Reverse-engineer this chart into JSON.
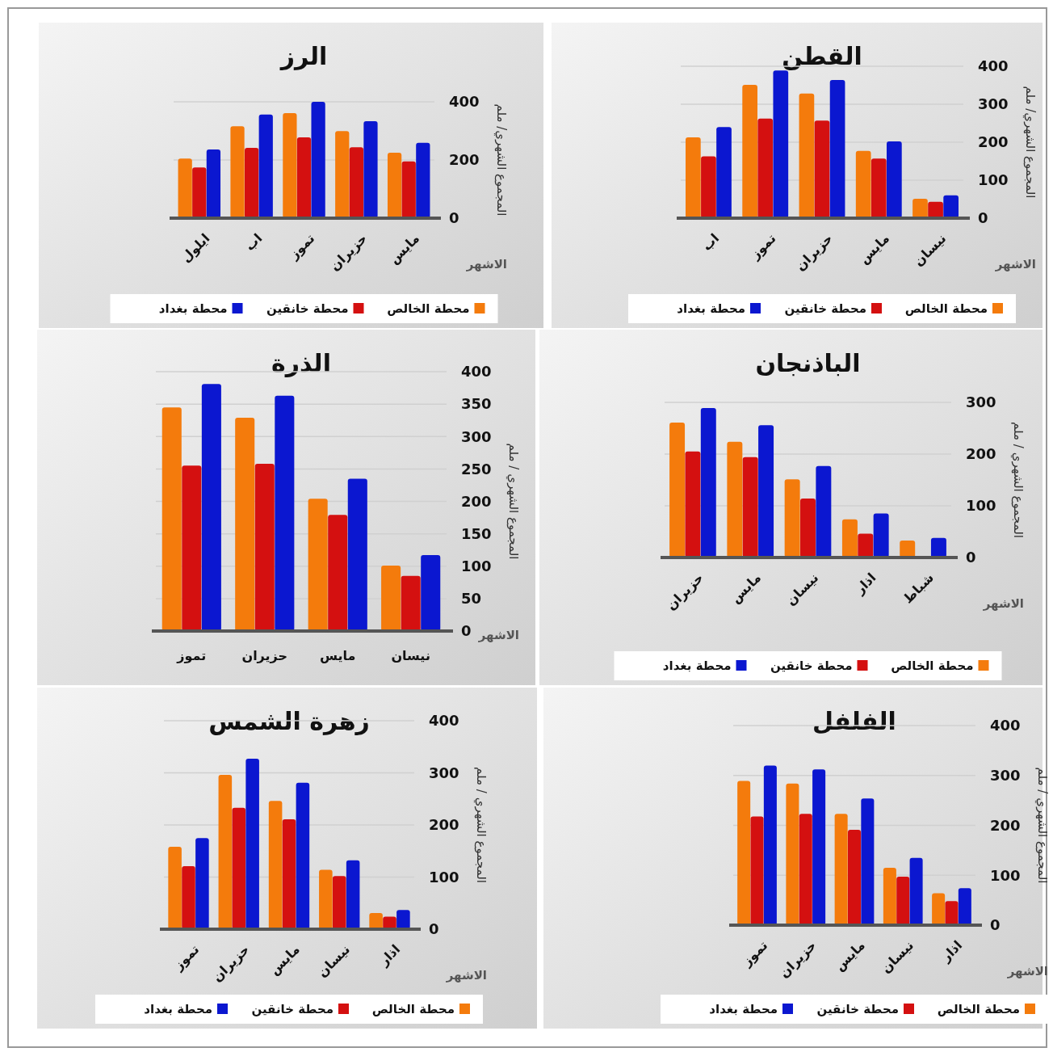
{
  "chart_data": [
    {
      "type": "bar",
      "title": "الرز",
      "xlabel": "الاشهر",
      "ylabel": "المجموع الشهري/ ملم",
      "categories": [
        "ايلول",
        "اب",
        "تموز",
        "حزيران",
        "مايس"
      ],
      "series": [
        {
          "name": "محطة الخالص",
          "color": "#f47b0c",
          "values": [
            205,
            316,
            361,
            299,
            225
          ]
        },
        {
          "name": "محطة خانقين",
          "color": "#d41010",
          "values": [
            174,
            242,
            278,
            244,
            195
          ]
        },
        {
          "name": "محطة بغداد",
          "color": "#0b17d0",
          "values": [
            236,
            356,
            400,
            333,
            259
          ]
        }
      ],
      "ylim": [
        0,
        400
      ],
      "yticks": [
        0,
        200,
        400
      ],
      "grid": "y",
      "legend": "bottom"
    },
    {
      "type": "bar",
      "title": "القطن",
      "xlabel": "الاشهر",
      "ylabel": "المجموع الشهري/ ملم",
      "categories": [
        "اب",
        "تموز",
        "حزيران",
        "مايس",
        "نيسان"
      ],
      "series": [
        {
          "name": "محطة الخالص",
          "color": "#f47b0c",
          "values": [
            213,
            351,
            328,
            177,
            51
          ]
        },
        {
          "name": "محطة خانقين",
          "color": "#d41010",
          "values": [
            163,
            262,
            257,
            157,
            43
          ]
        },
        {
          "name": "محطة بغداد",
          "color": "#0b17d0",
          "values": [
            240,
            389,
            364,
            202,
            60
          ]
        }
      ],
      "ylim": [
        0,
        400
      ],
      "yticks": [
        0,
        100,
        200,
        300,
        400
      ],
      "grid": "y",
      "legend": "bottom"
    },
    {
      "type": "bar",
      "title": "الذرة",
      "xlabel": "الاشهر",
      "ylabel": "المجموع الشهري / ملم",
      "categories": [
        "تموز",
        "حزيران",
        "مايس",
        "نيسان"
      ],
      "series": [
        {
          "color": "#f47b0c",
          "values": [
            345,
            329,
            204,
            101
          ]
        },
        {
          "color": "#d41010",
          "values": [
            255,
            258,
            179,
            85
          ]
        },
        {
          "color": "#0b17d0",
          "values": [
            381,
            363,
            235,
            117
          ]
        }
      ],
      "ylim": [
        0,
        400
      ],
      "yticks": [
        0,
        50,
        100,
        150,
        200,
        250,
        300,
        350,
        400
      ],
      "grid": "y",
      "legend": false
    },
    {
      "type": "bar",
      "title": "الباذنجان",
      "xlabel": "الاشهر",
      "ylabel": "المجموع الشهري / ملم",
      "categories": [
        "حزيران",
        "مايس",
        "نيسان",
        "اذار",
        "شباط"
      ],
      "series": [
        {
          "name": "محطة الخالص",
          "color": "#f47b0c",
          "values": [
            261,
            224,
            151,
            74,
            33
          ]
        },
        {
          "name": "محطة خانقين",
          "color": "#d41010",
          "values": [
            205,
            194,
            114,
            46,
            null
          ]
        },
        {
          "name": "محطة بغداد",
          "color": "#0b17d0",
          "values": [
            289,
            256,
            177,
            85,
            38
          ]
        }
      ],
      "ylim": [
        0,
        300
      ],
      "yticks": [
        0,
        100,
        200,
        300
      ],
      "grid": "y",
      "legend": "bottom"
    },
    {
      "type": "bar",
      "title": "زهرة الشمس",
      "xlabel": "الاشهر",
      "ylabel": "المجموع الشهري / ملم",
      "categories": [
        "تموز",
        "حزيران",
        "مايس",
        "نيسان",
        "اذار"
      ],
      "series": [
        {
          "name": "محطة الخالص",
          "color": "#f47b0c",
          "values": [
            158,
            296,
            246,
            114,
            31
          ]
        },
        {
          "name": "محطة خانقين",
          "color": "#d41010",
          "values": [
            121,
            233,
            211,
            102,
            24
          ]
        },
        {
          "name": "محطة بغداد",
          "color": "#0b17d0",
          "values": [
            175,
            327,
            281,
            132,
            37
          ]
        }
      ],
      "ylim": [
        0,
        400
      ],
      "yticks": [
        0,
        100,
        200,
        300,
        400
      ],
      "grid": "y",
      "legend": "bottom"
    },
    {
      "type": "bar",
      "title": "الفلفل",
      "xlabel": "الاشهر",
      "ylabel": "المجموع الشهري / ملم",
      "categories": [
        "تموز",
        "حزيران",
        "مايس",
        "نيسان",
        "اذار"
      ],
      "series": [
        {
          "name": "محطة الخالص",
          "color": "#f47b0c",
          "values": [
            289,
            284,
            223,
            115,
            64
          ]
        },
        {
          "name": "محطة خانقين",
          "color": "#d41010",
          "values": [
            218,
            223,
            191,
            97,
            48
          ]
        },
        {
          "name": "محطة بغداد",
          "color": "#0b17d0",
          "values": [
            320,
            312,
            254,
            135,
            74
          ]
        }
      ],
      "ylim": [
        0,
        400
      ],
      "yticks": [
        0,
        100,
        200,
        300,
        400
      ],
      "grid": "y",
      "legend": "bottom"
    }
  ]
}
